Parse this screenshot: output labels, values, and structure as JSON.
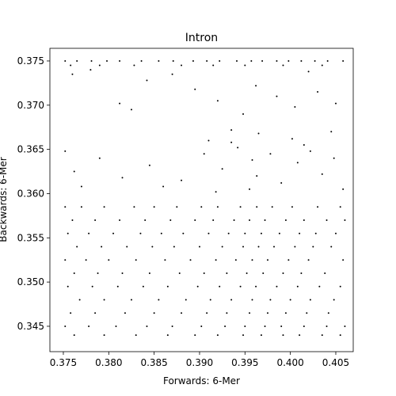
{
  "chart_data": {
    "type": "scatter",
    "title": "Intron",
    "x_label": "Forwards: 6-Mer",
    "y_label": "Backwards: 6-Mer",
    "xlim": [
      0.37352,
      0.40692
    ],
    "ylim": [
      0.34213,
      0.37643
    ],
    "xticks": [
      0.375,
      {
        "value": 0.38,
        "label": "0.380"
      },
      0.385,
      {
        "value": 0.39,
        "label": "0.390"
      },
      0.395,
      {
        "value": 0.4,
        "label": "0.400"
      },
      0.405
    ],
    "yticks": [
      0.345,
      {
        "value": 0.35,
        "label": "0.350"
      },
      0.355,
      {
        "value": 0.36,
        "label": "0.360"
      },
      0.365,
      {
        "value": 0.37,
        "label": "0.370"
      },
      0.375
    ],
    "series": [
      {
        "color": "#000000",
        "x": [
          0.3752,
          0.3765,
          0.3781,
          0.3798,
          0.3812,
          0.3836,
          0.3855,
          0.3871,
          0.3893,
          0.3908,
          0.3922,
          0.3941,
          0.3957,
          0.3969,
          0.3985,
          0.3998,
          0.4012,
          0.4027,
          0.4041,
          0.4058,
          0.3758,
          0.379,
          0.3828,
          0.388,
          0.3915,
          0.395,
          0.3992,
          0.4035,
          0.376,
          0.3812,
          0.3825,
          0.3842,
          0.3895,
          0.392,
          0.3948,
          0.3962,
          0.3985,
          0.4005,
          0.403,
          0.405,
          0.3935,
          0.3965,
          0.4002,
          0.4045,
          0.391,
          0.378,
          0.387,
          0.402,
          0.3752,
          0.3762,
          0.379,
          0.3815,
          0.3845,
          0.388,
          0.3905,
          0.3925,
          0.3942,
          0.3958,
          0.3963,
          0.3978,
          0.399,
          0.4008,
          0.4022,
          0.4035,
          0.4048,
          0.4058,
          0.3955,
          0.3918,
          0.386,
          0.377,
          0.3935,
          0.4015,
          0.3752,
          0.377,
          0.3795,
          0.3828,
          0.385,
          0.3875,
          0.3902,
          0.392,
          0.3945,
          0.3963,
          0.398,
          0.4002,
          0.403,
          0.4055,
          0.376,
          0.3785,
          0.3812,
          0.384,
          0.3868,
          0.3895,
          0.3915,
          0.3938,
          0.3955,
          0.3972,
          0.3995,
          0.4015,
          0.404,
          0.406,
          0.3755,
          0.3778,
          0.3805,
          0.3835,
          0.3858,
          0.3882,
          0.391,
          0.3932,
          0.395,
          0.3968,
          0.3988,
          0.401,
          0.4028,
          0.405,
          0.3765,
          0.3792,
          0.382,
          0.3848,
          0.3872,
          0.39,
          0.3925,
          0.3948,
          0.3965,
          0.3982,
          0.4005,
          0.4025,
          0.4045,
          0.3752,
          0.3775,
          0.38,
          0.383,
          0.3862,
          0.389,
          0.3918,
          0.394,
          0.3958,
          0.3975,
          0.3998,
          0.402,
          0.4058,
          0.3762,
          0.3788,
          0.3815,
          0.3845,
          0.3878,
          0.3905,
          0.393,
          0.3952,
          0.397,
          0.3992,
          0.4012,
          0.4038,
          0.3755,
          0.3782,
          0.381,
          0.3838,
          0.3865,
          0.3898,
          0.3922,
          0.3945,
          0.3962,
          0.3985,
          0.4008,
          0.4032,
          0.4055,
          0.3768,
          0.3795,
          0.3825,
          0.3855,
          0.3885,
          0.3912,
          0.3935,
          0.3958,
          0.3978,
          0.4,
          0.4022,
          0.4048,
          0.3758,
          0.3785,
          0.3818,
          0.385,
          0.388,
          0.3908,
          0.393,
          0.3955,
          0.3975,
          0.3995,
          0.4018,
          0.4042,
          0.3752,
          0.3778,
          0.3808,
          0.3842,
          0.387,
          0.3902,
          0.3928,
          0.395,
          0.3972,
          0.399,
          0.4015,
          0.404,
          0.406,
          0.3762,
          0.3795,
          0.383,
          0.3865,
          0.3895,
          0.392,
          0.3948,
          0.3968,
          0.3992,
          0.401,
          0.4035,
          0.4055
        ],
        "values": [
          0.375,
          0.375,
          0.375,
          0.375,
          0.375,
          0.375,
          0.375,
          0.375,
          0.375,
          0.375,
          0.375,
          0.375,
          0.375,
          0.375,
          0.375,
          0.375,
          0.375,
          0.375,
          0.375,
          0.375,
          0.3745,
          0.3745,
          0.3745,
          0.3745,
          0.3745,
          0.3745,
          0.3745,
          0.3745,
          0.3735,
          0.3702,
          0.3695,
          0.3728,
          0.3718,
          0.3705,
          0.369,
          0.3722,
          0.371,
          0.3698,
          0.3715,
          0.3702,
          0.3672,
          0.3668,
          0.3662,
          0.367,
          0.366,
          0.374,
          0.3735,
          0.3738,
          0.3648,
          0.3625,
          0.364,
          0.3618,
          0.3632,
          0.3615,
          0.3645,
          0.3628,
          0.3652,
          0.3638,
          0.362,
          0.3645,
          0.3612,
          0.3635,
          0.3648,
          0.3622,
          0.364,
          0.3605,
          0.3605,
          0.3602,
          0.3608,
          0.3608,
          0.3658,
          0.3655,
          0.3585,
          0.3585,
          0.3585,
          0.3585,
          0.3585,
          0.3585,
          0.3585,
          0.3585,
          0.3585,
          0.3585,
          0.3585,
          0.3585,
          0.3585,
          0.3585,
          0.357,
          0.357,
          0.357,
          0.357,
          0.357,
          0.357,
          0.357,
          0.357,
          0.357,
          0.357,
          0.357,
          0.357,
          0.357,
          0.357,
          0.3555,
          0.3555,
          0.3555,
          0.3555,
          0.3555,
          0.3555,
          0.3555,
          0.3555,
          0.3555,
          0.3555,
          0.3555,
          0.3555,
          0.3555,
          0.3555,
          0.354,
          0.354,
          0.354,
          0.354,
          0.354,
          0.354,
          0.354,
          0.354,
          0.354,
          0.354,
          0.354,
          0.354,
          0.354,
          0.3525,
          0.3525,
          0.3525,
          0.3525,
          0.3525,
          0.3525,
          0.3525,
          0.3525,
          0.3525,
          0.3525,
          0.3525,
          0.3525,
          0.3525,
          0.351,
          0.351,
          0.351,
          0.351,
          0.351,
          0.351,
          0.351,
          0.351,
          0.351,
          0.351,
          0.351,
          0.351,
          0.3495,
          0.3495,
          0.3495,
          0.3495,
          0.3495,
          0.3495,
          0.3495,
          0.3495,
          0.3495,
          0.3495,
          0.3495,
          0.3495,
          0.3495,
          0.348,
          0.348,
          0.348,
          0.348,
          0.348,
          0.348,
          0.348,
          0.348,
          0.348,
          0.348,
          0.348,
          0.348,
          0.3465,
          0.3465,
          0.3465,
          0.3465,
          0.3465,
          0.3465,
          0.3465,
          0.3465,
          0.3465,
          0.3465,
          0.3465,
          0.3465,
          0.345,
          0.345,
          0.345,
          0.345,
          0.345,
          0.345,
          0.345,
          0.345,
          0.345,
          0.345,
          0.345,
          0.345,
          0.345,
          0.344,
          0.344,
          0.344,
          0.344,
          0.344,
          0.344,
          0.344,
          0.344,
          0.344,
          0.344,
          0.344,
          0.344
        ]
      }
    ]
  }
}
